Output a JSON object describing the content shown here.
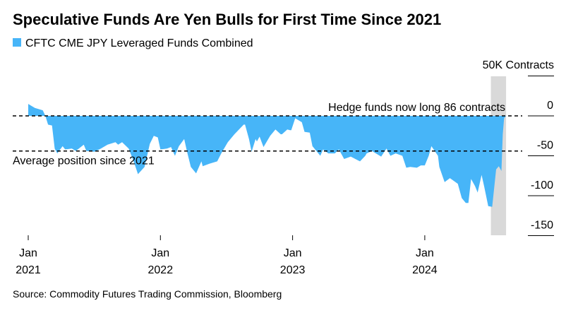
{
  "chart_data": {
    "type": "area",
    "title": "Speculative Funds Are Yen Bulls for First Time Since 2021",
    "legend": [
      {
        "label": "CFTC CME JPY Leveraged Funds Combined",
        "color": "#47b5f8"
      }
    ],
    "legend_placement": "top-left",
    "ylabel": "50K Contracts",
    "ylim": [
      -150,
      50
    ],
    "yticks": [
      {
        "v": 0,
        "label": "0"
      },
      {
        "v": -50,
        "label": "-50"
      },
      {
        "v": -100,
        "label": "-100"
      },
      {
        "v": -150,
        "label": "-150"
      }
    ],
    "xlim": [
      2021.0,
      2024.62
    ],
    "xticks": [
      {
        "v": 2021,
        "m": "Jan",
        "y": "2021"
      },
      {
        "v": 2022,
        "m": "Jan",
        "y": "2022"
      },
      {
        "v": 2023,
        "m": "Jan",
        "y": "2023"
      },
      {
        "v": 2024,
        "m": "Jan",
        "y": "2024"
      }
    ],
    "x": [
      2021.0,
      2021.05,
      2021.11,
      2021.13,
      2021.15,
      2021.18,
      2021.2,
      2021.22,
      2021.26,
      2021.28,
      2021.33,
      2021.36,
      2021.42,
      2021.44,
      2021.5,
      2021.55,
      2021.6,
      2021.66,
      2021.68,
      2021.71,
      2021.76,
      2021.8,
      2021.83,
      2021.88,
      2021.92,
      2021.95,
      2021.98,
      2022.0,
      2022.05,
      2022.08,
      2022.11,
      2022.14,
      2022.18,
      2022.2,
      2022.23,
      2022.27,
      2022.31,
      2022.32,
      2022.37,
      2022.43,
      2022.46,
      2022.51,
      2022.56,
      2022.63,
      2022.64,
      2022.67,
      2022.69,
      2022.72,
      2022.73,
      2022.75,
      2022.78,
      2022.83,
      2022.87,
      2022.91,
      2022.92,
      2022.96,
      2022.98,
      2022.99,
      2023.02,
      2023.03,
      2023.07,
      2023.09,
      2023.13,
      2023.15,
      2023.21,
      2023.23,
      2023.27,
      2023.32,
      2023.35,
      2023.39,
      2023.44,
      2023.51,
      2023.55,
      2023.56,
      2023.6,
      2023.67,
      2023.71,
      2023.74,
      2023.78,
      2023.83,
      2023.86,
      2023.89,
      2023.94,
      2023.97,
      2024.0,
      2024.03,
      2024.05,
      2024.1,
      2024.11,
      2024.15,
      2024.19,
      2024.25,
      2024.28,
      2024.31,
      2024.33,
      2024.35,
      2024.38,
      2024.4,
      2024.43,
      2024.45,
      2024.48,
      2024.51,
      2024.54,
      2024.56,
      2024.58,
      2024.59,
      2024.6,
      2024.615
    ],
    "values": [
      15,
      10,
      7,
      0,
      -11,
      -12,
      -41,
      -47,
      -38,
      -42,
      -41,
      -44,
      -36,
      -44,
      -45,
      -41,
      -36,
      -33,
      -36,
      -33,
      -41,
      -58,
      -73,
      -64,
      -35,
      -25,
      -27,
      -42,
      -41,
      -39,
      -50,
      -38,
      -29,
      -44,
      -64,
      -72,
      -57,
      -63,
      -60,
      -57,
      -47,
      -33,
      -23,
      -11,
      -11,
      -29,
      -45,
      -29,
      -32,
      -26,
      -39,
      -25,
      -17,
      -23,
      -23,
      -17,
      -18,
      -18,
      -3,
      -4,
      -8,
      -20,
      -21,
      -38,
      -50,
      -42,
      -47,
      -47,
      -42,
      -54,
      -51,
      -57,
      -50,
      -47,
      -44,
      -51,
      -41,
      -50,
      -47,
      -50,
      -65,
      -64,
      -65,
      -62,
      -62,
      -50,
      -38,
      -50,
      -64,
      -83,
      -78,
      -85,
      -103,
      -109,
      -109,
      -79,
      -88,
      -96,
      -74,
      -89,
      -113,
      -114,
      -67,
      -63,
      -69,
      -23,
      -3,
      0.086
    ],
    "reference_lines": [
      {
        "value": 0,
        "label": "Hedge funds now long 86 contracts"
      },
      {
        "value": -44,
        "label": "Average position since 2021"
      }
    ],
    "highlight_range": [
      2024.5,
      2024.615
    ]
  },
  "source": "Source: Commodity Futures Trading Commission, Bloomberg"
}
